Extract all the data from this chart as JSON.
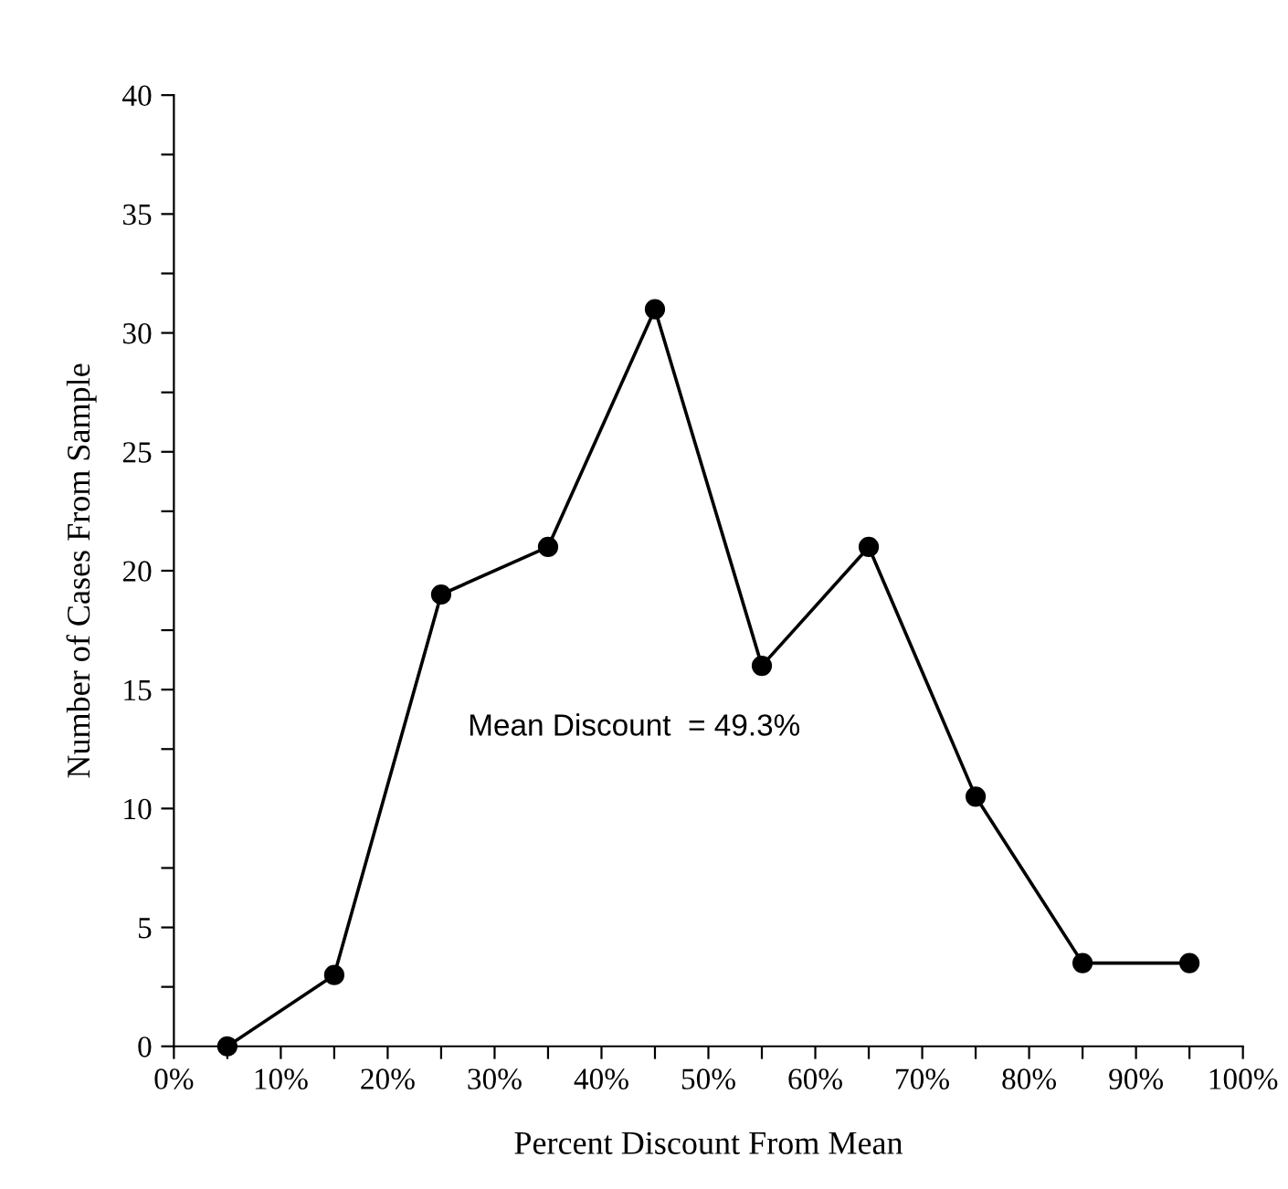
{
  "chart_data": {
    "type": "line",
    "xlabel": "Percent Discount From Mean",
    "ylabel": "Number of Cases From Sample",
    "x": [
      5,
      15,
      25,
      35,
      45,
      55,
      65,
      75,
      85,
      95
    ],
    "series": [
      {
        "color": "#000000",
        "values": [
          0,
          3,
          19,
          21,
          31,
          16,
          21,
          10.5,
          3.5,
          3.5
        ]
      }
    ],
    "marker": "circle",
    "line_style": "solid",
    "grid": false,
    "legend": false,
    "xlim": [
      0,
      100
    ],
    "ylim": [
      0,
      40
    ],
    "xticks": [
      {
        "value": 0,
        "label": "0%"
      },
      {
        "value": 5,
        "label": null
      },
      {
        "value": 10,
        "label": "10%"
      },
      {
        "value": 15,
        "label": null
      },
      {
        "value": 20,
        "label": "20%"
      },
      {
        "value": 25,
        "label": null
      },
      {
        "value": 30,
        "label": "30%"
      },
      {
        "value": 35,
        "label": null
      },
      {
        "value": 40,
        "label": "40%"
      },
      {
        "value": 45,
        "label": null
      },
      {
        "value": 50,
        "label": "50%"
      },
      {
        "value": 55,
        "label": null
      },
      {
        "value": 60,
        "label": "60%"
      },
      {
        "value": 65,
        "label": null
      },
      {
        "value": 70,
        "label": "70%"
      },
      {
        "value": 75,
        "label": null
      },
      {
        "value": 80,
        "label": "80%"
      },
      {
        "value": 85,
        "label": null
      },
      {
        "value": 90,
        "label": "90%"
      },
      {
        "value": 95,
        "label": null
      },
      {
        "value": 100,
        "label": "100%"
      }
    ],
    "yticks": [
      0,
      {
        "value": 2.5,
        "label": null
      },
      5,
      {
        "value": 7.5,
        "label": null
      },
      10,
      {
        "value": 12.5,
        "label": null
      },
      15,
      {
        "value": 17.5,
        "label": null
      },
      20,
      {
        "value": 22.5,
        "label": null
      },
      25,
      {
        "value": 27.5,
        "label": null
      },
      30,
      {
        "value": 32.5,
        "label": null
      },
      35,
      {
        "value": 37.5,
        "label": null
      },
      40
    ],
    "annotations": [
      "Mean Discount  = 49.3%"
    ]
  }
}
